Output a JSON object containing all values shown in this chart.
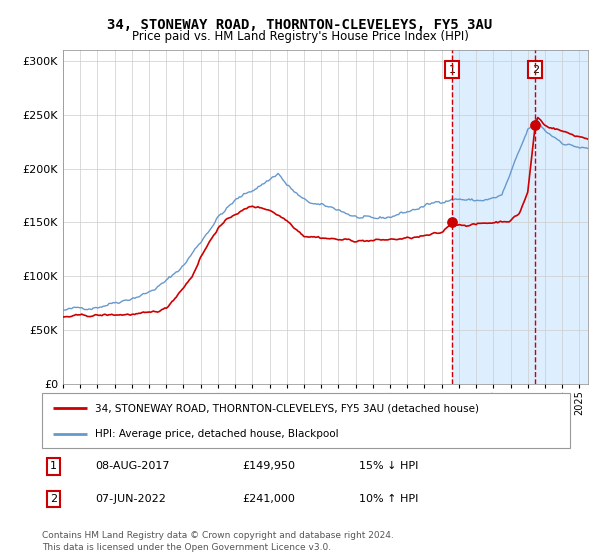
{
  "title1": "34, STONEWAY ROAD, THORNTON-CLEVELEYS, FY5 3AU",
  "title2": "Price paid vs. HM Land Registry's House Price Index (HPI)",
  "ylabel_ticks": [
    "£0",
    "£50K",
    "£100K",
    "£150K",
    "£200K",
    "£250K",
    "£300K"
  ],
  "ytick_vals": [
    0,
    50000,
    100000,
    150000,
    200000,
    250000,
    300000
  ],
  "ylim": [
    0,
    310000
  ],
  "xlim_start": 1995.0,
  "xlim_end": 2025.5,
  "transaction1": {
    "date_num": 2017.6,
    "price": 149950,
    "label": "1"
  },
  "transaction2": {
    "date_num": 2022.44,
    "price": 241000,
    "label": "2"
  },
  "legend_red": "34, STONEWAY ROAD, THORNTON-CLEVELEYS, FY5 3AU (detached house)",
  "legend_blue": "HPI: Average price, detached house, Blackpool",
  "footer1": "Contains HM Land Registry data © Crown copyright and database right 2024.",
  "footer2": "This data is licensed under the Open Government Licence v3.0.",
  "table_row1": [
    "1",
    "08-AUG-2017",
    "£149,950",
    "15% ↓ HPI"
  ],
  "table_row2": [
    "2",
    "07-JUN-2022",
    "£241,000",
    "10% ↑ HPI"
  ],
  "hpi_color": "#6699cc",
  "price_color": "#cc0000",
  "shade_color": "#ddeeff",
  "grid_color": "#cccccc",
  "bg_color": "#ffffff",
  "marker_color": "#cc0000",
  "dashed_color": "#cc0000",
  "hpi_anchors_x": [
    1995.0,
    1996.0,
    1997.0,
    1998.0,
    1999.0,
    2000.0,
    2001.0,
    2002.0,
    2003.0,
    2004.0,
    2005.0,
    2005.5,
    2006.0,
    2007.0,
    2007.5,
    2008.0,
    2009.0,
    2010.0,
    2011.0,
    2012.0,
    2013.0,
    2014.0,
    2014.5,
    2015.0,
    2016.0,
    2017.0,
    2017.5,
    2018.0,
    2019.0,
    2020.0,
    2020.5,
    2021.0,
    2021.5,
    2022.0,
    2022.5,
    2023.0,
    2023.5,
    2024.0,
    2024.5,
    2025.0,
    2025.5
  ],
  "hpi_anchors_y": [
    68000,
    70000,
    72000,
    76000,
    80000,
    85000,
    95000,
    110000,
    132000,
    155000,
    170000,
    175000,
    180000,
    190000,
    196000,
    185000,
    170000,
    165000,
    162000,
    155000,
    152000,
    155000,
    158000,
    160000,
    165000,
    170000,
    172000,
    172000,
    170000,
    172000,
    175000,
    195000,
    215000,
    235000,
    245000,
    235000,
    230000,
    225000,
    222000,
    220000,
    218000
  ],
  "prop_anchors_x": [
    1995.0,
    1996.0,
    1997.0,
    1998.0,
    1999.0,
    2000.0,
    2001.0,
    2002.0,
    2002.5,
    2003.0,
    2004.0,
    2005.0,
    2006.0,
    2007.0,
    2008.0,
    2009.0,
    2010.0,
    2010.5,
    2011.0,
    2011.5,
    2012.0,
    2012.5,
    2013.0,
    2013.5,
    2014.0,
    2015.0,
    2016.0,
    2017.0,
    2017.6,
    2018.0,
    2019.0,
    2020.0,
    2021.0,
    2021.5,
    2022.0,
    2022.44,
    2022.6,
    2023.0,
    2023.5,
    2024.0,
    2024.5,
    2025.0,
    2025.5
  ],
  "prop_anchors_y": [
    62000,
    63000,
    63500,
    64000,
    64500,
    65000,
    70000,
    90000,
    100000,
    118000,
    145000,
    158000,
    165000,
    162000,
    152000,
    138000,
    136000,
    135000,
    134000,
    133500,
    133000,
    133000,
    133000,
    133500,
    134000,
    135000,
    137000,
    140000,
    149950,
    148000,
    148000,
    150000,
    152000,
    158000,
    178000,
    241000,
    248000,
    240000,
    238000,
    235000,
    232000,
    230000,
    228000
  ]
}
